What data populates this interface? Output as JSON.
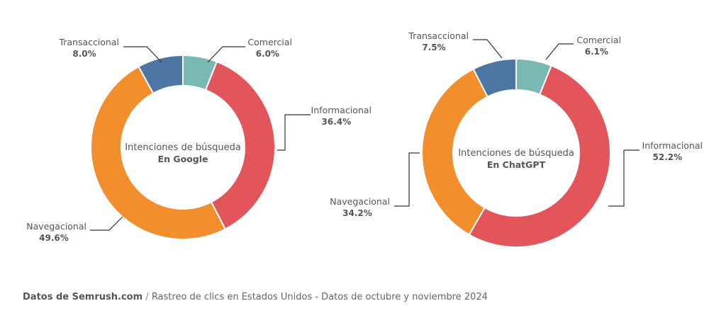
{
  "chart_data": [
    {
      "type": "pie",
      "center_label": "Intenciones de búsqueda",
      "center_sublabel": "En Google",
      "slices": [
        {
          "label": "Transaccional",
          "value_label": "8.0%",
          "value": 8.0,
          "color": "#4e76a4"
        },
        {
          "label": "Comercial",
          "value_label": "6.0%",
          "value": 6.0,
          "color": "#79b8b3"
        },
        {
          "label": "Informacional",
          "value_label": "36.4%",
          "value": 36.4,
          "color": "#e2565b"
        },
        {
          "label": "Navegacional",
          "value_label": "49.6%",
          "value": 49.6,
          "color": "#f28f2c"
        }
      ]
    },
    {
      "type": "pie",
      "center_label": "Intenciones de búsqueda",
      "center_sublabel": "En ChatGPT",
      "slices": [
        {
          "label": "Transaccional",
          "value_label": "7.5%",
          "value": 7.5,
          "color": "#4e76a4"
        },
        {
          "label": "Comercial",
          "value_label": "6.1%",
          "value": 6.1,
          "color": "#79b8b3"
        },
        {
          "label": "Informacional",
          "value_label": "52.2%",
          "value": 52.2,
          "color": "#e2565b"
        },
        {
          "label": "Navegacional",
          "value_label": "34.2%",
          "value": 34.2,
          "color": "#f28f2c"
        }
      ]
    }
  ],
  "footer": {
    "source": "Datos de Semrush.com",
    "separator": "/",
    "note": "Rastreo de clics en Estados Unidos - Datos de octubre y noviembre 2024"
  }
}
